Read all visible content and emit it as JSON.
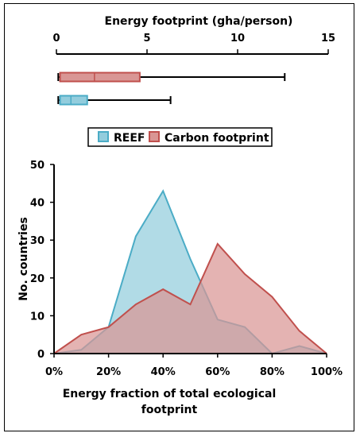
{
  "chart_data": [
    {
      "type": "box",
      "title": "Energy footprint (gha/person)",
      "xlim": [
        0,
        15
      ],
      "xticks": [
        0,
        5,
        10,
        15
      ],
      "series": [
        {
          "name": "Carbon footprint",
          "min": 0.1,
          "q1": 0.2,
          "median": 2.1,
          "q3": 4.6,
          "max": 12.6,
          "color": "#c0504d",
          "fill": "#d99694"
        },
        {
          "name": "REEF",
          "min": 0.1,
          "q1": 0.2,
          "median": 0.8,
          "q3": 1.7,
          "max": 6.3,
          "color": "#4bacc6",
          "fill": "#93cddd"
        }
      ]
    },
    {
      "type": "area",
      "xlabel": "Energy fraction of total ecological footprint",
      "ylabel": "No. countries",
      "x": [
        0,
        10,
        20,
        30,
        40,
        50,
        60,
        70,
        80,
        90,
        100
      ],
      "xticks": [
        "0%",
        "20%",
        "40%",
        "60%",
        "80%",
        "100%"
      ],
      "ylim": [
        0,
        50
      ],
      "yticks": [
        0,
        10,
        20,
        30,
        40,
        50
      ],
      "grid": false,
      "legend_position": "top-right",
      "series": [
        {
          "name": "REEF",
          "values": [
            0,
            1,
            7,
            31,
            43,
            25,
            9,
            7,
            0,
            2,
            0
          ],
          "color": "#4bacc6",
          "fill": "#93cddd"
        },
        {
          "name": "Carbon footprint",
          "values": [
            0,
            5,
            7,
            13,
            17,
            13,
            29,
            21,
            15,
            6,
            0
          ],
          "color": "#c0504d",
          "fill": "#d99694"
        }
      ]
    }
  ]
}
